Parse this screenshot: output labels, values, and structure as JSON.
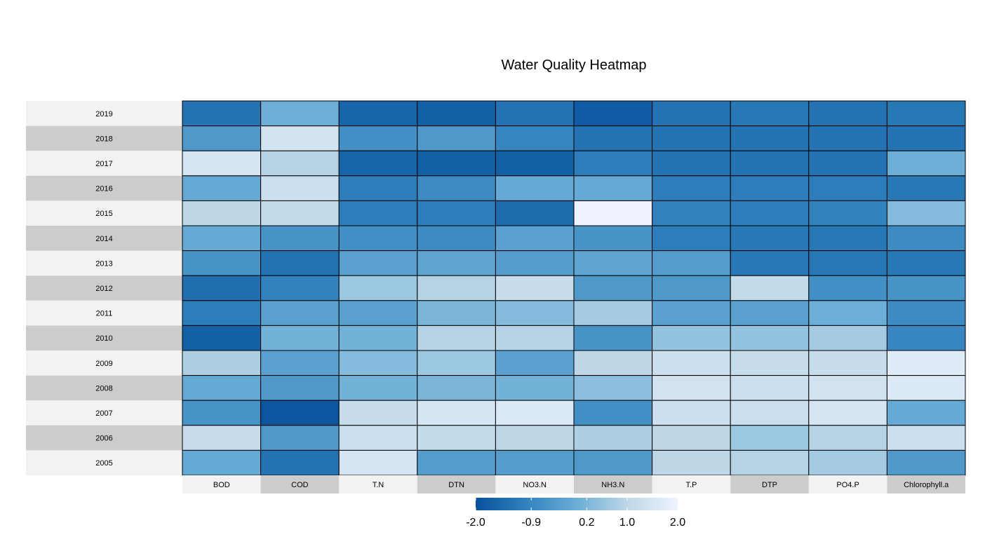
{
  "chart_data": {
    "type": "heatmap",
    "title": "Water Quality Heatmap",
    "columns": [
      "BOD",
      "COD",
      "T.N",
      "DTN",
      "NO3.N",
      "NH3.N",
      "T.P",
      "DTP",
      "PO4.P",
      "Chlorophyll.a"
    ],
    "rows": [
      "2019",
      "2018",
      "2017",
      "2016",
      "2015",
      "2014",
      "2013",
      "2012",
      "2011",
      "2010",
      "2009",
      "2008",
      "2007",
      "2006",
      "2005"
    ],
    "values": [
      [
        -1.3,
        0.0,
        -1.6,
        -1.7,
        -1.3,
        -1.8,
        -1.3,
        -1.2,
        -1.3,
        -1.2
      ],
      [
        -0.5,
        1.4,
        -0.7,
        -0.5,
        -0.9,
        -1.3,
        -1.3,
        -1.3,
        -1.3,
        -1.3
      ],
      [
        1.5,
        0.9,
        -1.6,
        -1.7,
        -1.7,
        -1.1,
        -1.3,
        -1.3,
        -1.3,
        0.0
      ],
      [
        -0.1,
        1.3,
        -1.1,
        -0.8,
        -0.1,
        -0.1,
        -1.1,
        -1.1,
        -1.1,
        -1.2
      ],
      [
        1.0,
        1.1,
        -1.1,
        -1.1,
        -1.5,
        2.0,
        -1.0,
        -1.1,
        -1.0,
        0.3
      ],
      [
        -0.1,
        -0.6,
        -0.7,
        -0.8,
        -0.3,
        -0.6,
        -1.1,
        -1.2,
        -1.2,
        -0.8
      ],
      [
        -0.6,
        -1.3,
        -0.3,
        -0.2,
        -0.4,
        -0.2,
        -0.4,
        -1.2,
        -1.2,
        -1.2
      ],
      [
        -1.4,
        -1.0,
        0.6,
        0.9,
        1.2,
        -0.5,
        -0.5,
        1.1,
        -0.7,
        -0.6
      ],
      [
        -1.1,
        -0.3,
        -0.3,
        0.2,
        0.3,
        0.7,
        -0.3,
        -0.3,
        0.0,
        -0.8
      ],
      [
        -1.7,
        0.1,
        0.1,
        0.9,
        0.9,
        -0.6,
        0.5,
        0.5,
        0.7,
        -0.9
      ],
      [
        0.8,
        -0.3,
        0.3,
        0.6,
        -0.3,
        1.0,
        1.3,
        1.2,
        1.2,
        1.7
      ],
      [
        -0.1,
        -0.5,
        0.1,
        0.2,
        0.1,
        0.4,
        1.4,
        1.3,
        1.4,
        1.6
      ],
      [
        -0.6,
        -1.9,
        1.2,
        1.5,
        1.6,
        -0.7,
        1.3,
        1.3,
        1.5,
        -0.1
      ],
      [
        1.2,
        -0.5,
        1.3,
        1.1,
        1.0,
        0.8,
        1.0,
        0.6,
        0.9,
        1.3
      ],
      [
        -0.1,
        -1.3,
        1.5,
        -0.4,
        -0.4,
        -0.5,
        1.0,
        0.9,
        0.7,
        -0.5
      ]
    ],
    "legend": {
      "ticks": [
        -2.0,
        -0.9,
        0.2,
        1.0,
        2.0
      ],
      "tick_labels": [
        "-2.0",
        "-0.9",
        "0.2",
        "1.0",
        "2.0"
      ],
      "colors": [
        "#08519C",
        "#3182BD",
        "#6BAED6",
        "#BDD7E7",
        "#EFF3FF"
      ],
      "placement": "bottom"
    }
  }
}
